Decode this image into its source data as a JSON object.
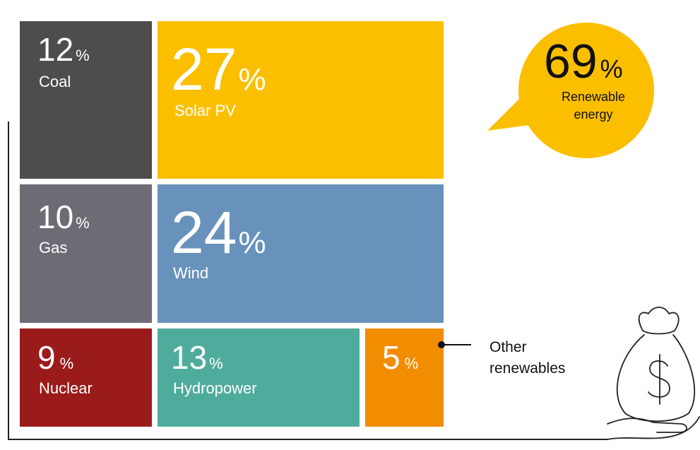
{
  "unit": "%",
  "tiles": [
    {
      "percent": "12",
      "label": "Coal"
    },
    {
      "percent": "27",
      "label": "Solar PV"
    },
    {
      "percent": "10",
      "label": "Gas"
    },
    {
      "percent": "24",
      "label": "Wind"
    },
    {
      "percent": "9",
      "label": "Nuclear"
    },
    {
      "percent": "13",
      "label": "Hydropower"
    },
    {
      "percent": "5"
    }
  ],
  "other_label": [
    "Other",
    "renewables"
  ],
  "callout": {
    "percent": "69",
    "label": [
      "Renewable",
      "energy"
    ]
  }
}
